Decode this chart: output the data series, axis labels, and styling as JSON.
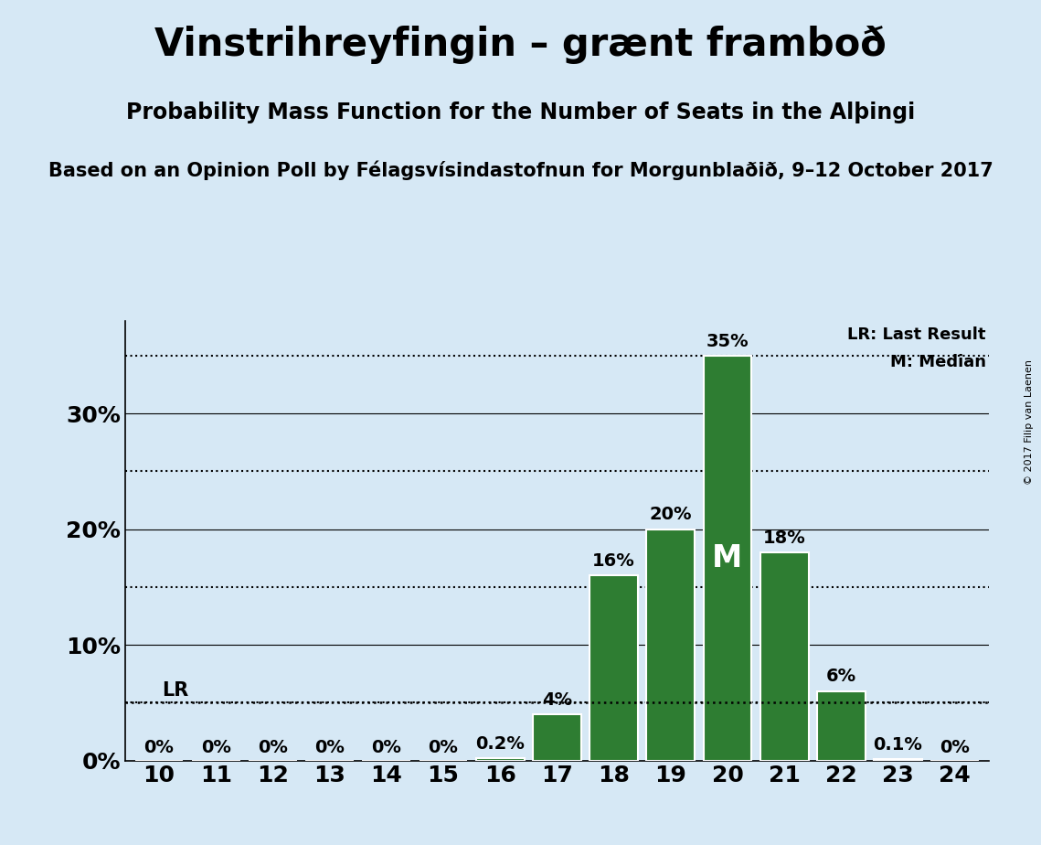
{
  "title": "Vinstrihreyfingin – grænt framboð",
  "subtitle": "Probability Mass Function for the Number of Seats in the Alþingi",
  "source": "Based on an Opinion Poll by Félagsvísindastofnun for Morgunblaðið, 9–12 October 2017",
  "copyright": "© 2017 Filip van Laenen",
  "seats": [
    10,
    11,
    12,
    13,
    14,
    15,
    16,
    17,
    18,
    19,
    20,
    21,
    22,
    23,
    24
  ],
  "probabilities": [
    0.0,
    0.0,
    0.0,
    0.0,
    0.0,
    0.0,
    0.2,
    4.0,
    16.0,
    20.0,
    35.0,
    18.0,
    6.0,
    0.1,
    0.0
  ],
  "bar_color": "#2e7d32",
  "background_color": "#d6e8f5",
  "last_result_seat": 16,
  "last_result_value": 5.0,
  "median_seat": 20,
  "lr_label": "LR",
  "lr_legend": "LR: Last Result",
  "m_legend": "M: Median",
  "ylim": [
    0,
    38
  ],
  "yticks": [
    0,
    10,
    20,
    30
  ],
  "ytick_labels": [
    "0%",
    "10%",
    "20%",
    "30%"
  ],
  "dotted_yticks": [
    5,
    15,
    25,
    35
  ],
  "title_fontsize": 30,
  "subtitle_fontsize": 17,
  "source_fontsize": 15,
  "bar_label_fontsize": 14,
  "axis_label_fontsize": 18
}
